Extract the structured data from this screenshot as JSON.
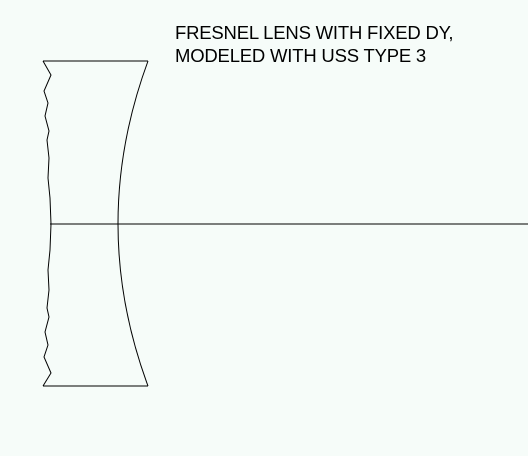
{
  "title": {
    "line1": "FRESNEL LENS WITH FIXED DY,",
    "line2": "MODELED WITH USS TYPE 3"
  },
  "colors": {
    "background": "#f6fcf9",
    "stroke": "#000000"
  }
}
